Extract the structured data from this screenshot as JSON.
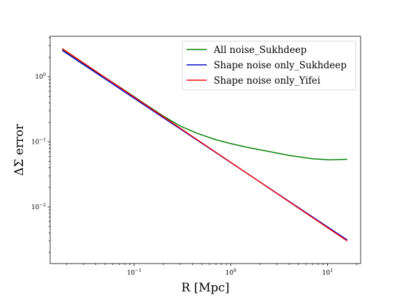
{
  "chart_data": {
    "type": "line",
    "xlabel": "R [Mpc]",
    "ylabel": "ΔΣ error",
    "xscale": "log",
    "yscale": "log",
    "xlim": [
      0.0135,
      22
    ],
    "ylim": [
      0.00135,
      4.2
    ],
    "xticks": [
      {
        "value": 0.1,
        "mantissa": "10",
        "exp": "−1"
      },
      {
        "value": 1,
        "mantissa": "10",
        "exp": "0"
      },
      {
        "value": 10,
        "mantissa": "10",
        "exp": "1"
      }
    ],
    "yticks": [
      {
        "value": 0.01,
        "mantissa": "10",
        "exp": "−2"
      },
      {
        "value": 0.1,
        "mantissa": "10",
        "exp": "−1"
      },
      {
        "value": 1,
        "mantissa": "10",
        "exp": "0"
      }
    ],
    "legend_position": "top-right",
    "grid": false,
    "series": [
      {
        "name": "All noise_Sukhdeep",
        "color": "#008000",
        "x": [
          0.018,
          0.026,
          0.04,
          0.06,
          0.09,
          0.13,
          0.2,
          0.3,
          0.45,
          0.7,
          1.0,
          1.5,
          2.5,
          4.0,
          7.0,
          10.5,
          16.0
        ],
        "y": [
          2.6,
          1.8,
          1.2,
          0.82,
          0.55,
          0.38,
          0.25,
          0.175,
          0.135,
          0.108,
          0.094,
          0.082,
          0.071,
          0.062,
          0.055,
          0.053,
          0.054
        ]
      },
      {
        "name": "Shape noise only_Sukhdeep",
        "color": "#0000cc",
        "x": [
          0.018,
          16.0
        ],
        "y": [
          2.55,
          0.0031
        ]
      },
      {
        "name": "Shape noise only_Yifei",
        "color": "#ff0000",
        "x": [
          0.018,
          16.0
        ],
        "y": [
          2.72,
          0.003
        ]
      }
    ]
  }
}
